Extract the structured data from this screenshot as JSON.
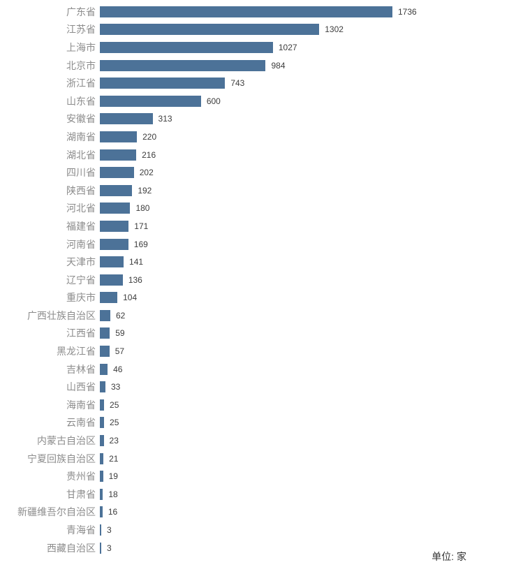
{
  "chart_data": {
    "type": "bar",
    "orientation": "horizontal",
    "categories": [
      "广东省",
      "江苏省",
      "上海市",
      "北京市",
      "浙江省",
      "山东省",
      "安徽省",
      "湖南省",
      "湖北省",
      "四川省",
      "陕西省",
      "河北省",
      "福建省",
      "河南省",
      "天津市",
      "辽宁省",
      "重庆市",
      "广西壮族自治区",
      "江西省",
      "黑龙江省",
      "吉林省",
      "山西省",
      "海南省",
      "云南省",
      "内蒙古自治区",
      "宁夏回族自治区",
      "贵州省",
      "甘肃省",
      "新疆维吾尔自治区",
      "青海省",
      "西藏自治区"
    ],
    "values": [
      1736,
      1302,
      1027,
      984,
      743,
      600,
      313,
      220,
      216,
      202,
      192,
      180,
      171,
      169,
      141,
      136,
      104,
      62,
      59,
      57,
      46,
      33,
      25,
      25,
      23,
      21,
      19,
      18,
      16,
      3,
      3
    ],
    "title": "",
    "xlabel": "",
    "ylabel": "",
    "xlim": [
      0,
      1736
    ],
    "grid": false,
    "legend": false,
    "bar_color": "#4c7298",
    "category_label_color": "#8c8c8c",
    "value_label_color": "#3d3d3d",
    "data_labels": true
  },
  "footer": {
    "unit_label": "单位: 家"
  }
}
